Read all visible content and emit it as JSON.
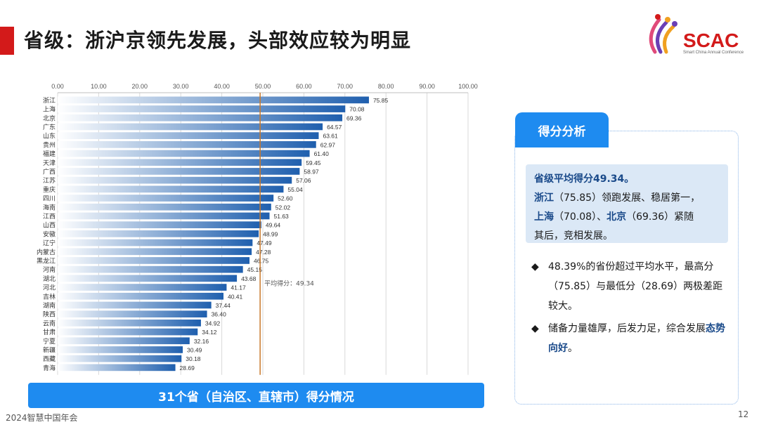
{
  "header": {
    "title": "省级：浙沪京领先发展，头部效应较为明显",
    "logo_text": "SCAC",
    "logo_sub": "Smart China Annual Conference"
  },
  "chart_caption": "31个省（自治区、直辖市）得分情况",
  "chart_data": {
    "type": "bar",
    "orientation": "horizontal",
    "categories": [
      "浙江",
      "上海",
      "北京",
      "广东",
      "山东",
      "贵州",
      "福建",
      "天津",
      "广西",
      "江苏",
      "重庆",
      "四川",
      "海南",
      "江西",
      "山西",
      "安徽",
      "辽宁",
      "内蒙古",
      "黑龙江",
      "河南",
      "湖北",
      "河北",
      "吉林",
      "湖南",
      "陕西",
      "云南",
      "甘肃",
      "宁夏",
      "新疆",
      "西藏",
      "青海"
    ],
    "values": [
      75.85,
      70.08,
      69.36,
      64.57,
      63.61,
      62.97,
      61.4,
      59.45,
      58.97,
      57.06,
      55.04,
      52.6,
      52.02,
      51.63,
      49.64,
      48.99,
      47.49,
      47.28,
      46.75,
      45.15,
      43.68,
      41.17,
      40.41,
      37.44,
      36.4,
      34.92,
      34.12,
      32.16,
      30.49,
      30.18,
      28.69
    ],
    "value_labels": [
      "75.85",
      "70.08",
      "69.36",
      "64.57",
      "63.61",
      "62.97",
      "61.40",
      "59.45",
      "58.97",
      "57.06",
      "55.04",
      "52.60",
      "52.02",
      "51.63",
      "49.64",
      "48.99",
      "47.49",
      "47.28",
      "46.75",
      "45.15",
      "43.68",
      "41.17",
      "40.41",
      "37.44",
      "36.40",
      "34.92",
      "34.12",
      "32.16",
      "30.49",
      "30.18",
      "28.69"
    ],
    "xlim": [
      0,
      100
    ],
    "xticks": [
      "0.00",
      "10.00",
      "20.00",
      "30.00",
      "40.00",
      "50.00",
      "60.00",
      "70.00",
      "80.00",
      "90.00",
      "100.00"
    ],
    "grid": true,
    "axis_position": "top",
    "average_line": {
      "value": 49.34,
      "label": "平均得分：49.34",
      "color": "#c8782a"
    },
    "bar_color_start": "#ffffff",
    "bar_color_end": "#1f5fae"
  },
  "panel": {
    "tab_label": "得分分析",
    "summary_head": "省级平均得分49.34。",
    "summary_line2_a": "浙江",
    "summary_line2_b": "（75.85）领跑发展、稳居第一，",
    "summary_line3_a": "上海",
    "summary_line3_b": "（70.08）、",
    "summary_line3_c": "北京",
    "summary_line3_d": "（69.36）紧随",
    "summary_line4": "其后，竞相发展。",
    "bullet1": "48.39%的省份超过平均水平，最高分（75.85）与最低分（28.69）两极差距较大。",
    "bullet2_a": "储备力量雄厚，后发力足，综合发展",
    "bullet2_b": "态势向好",
    "bullet2_c": "。",
    "bullet_icon": "◆"
  },
  "footer": {
    "left": "2024智慧中国年会",
    "page_number": "12"
  },
  "colors": {
    "accent": "#d31a1a",
    "blue": "#1e8bf0",
    "dark_blue": "#1a4a8a"
  }
}
